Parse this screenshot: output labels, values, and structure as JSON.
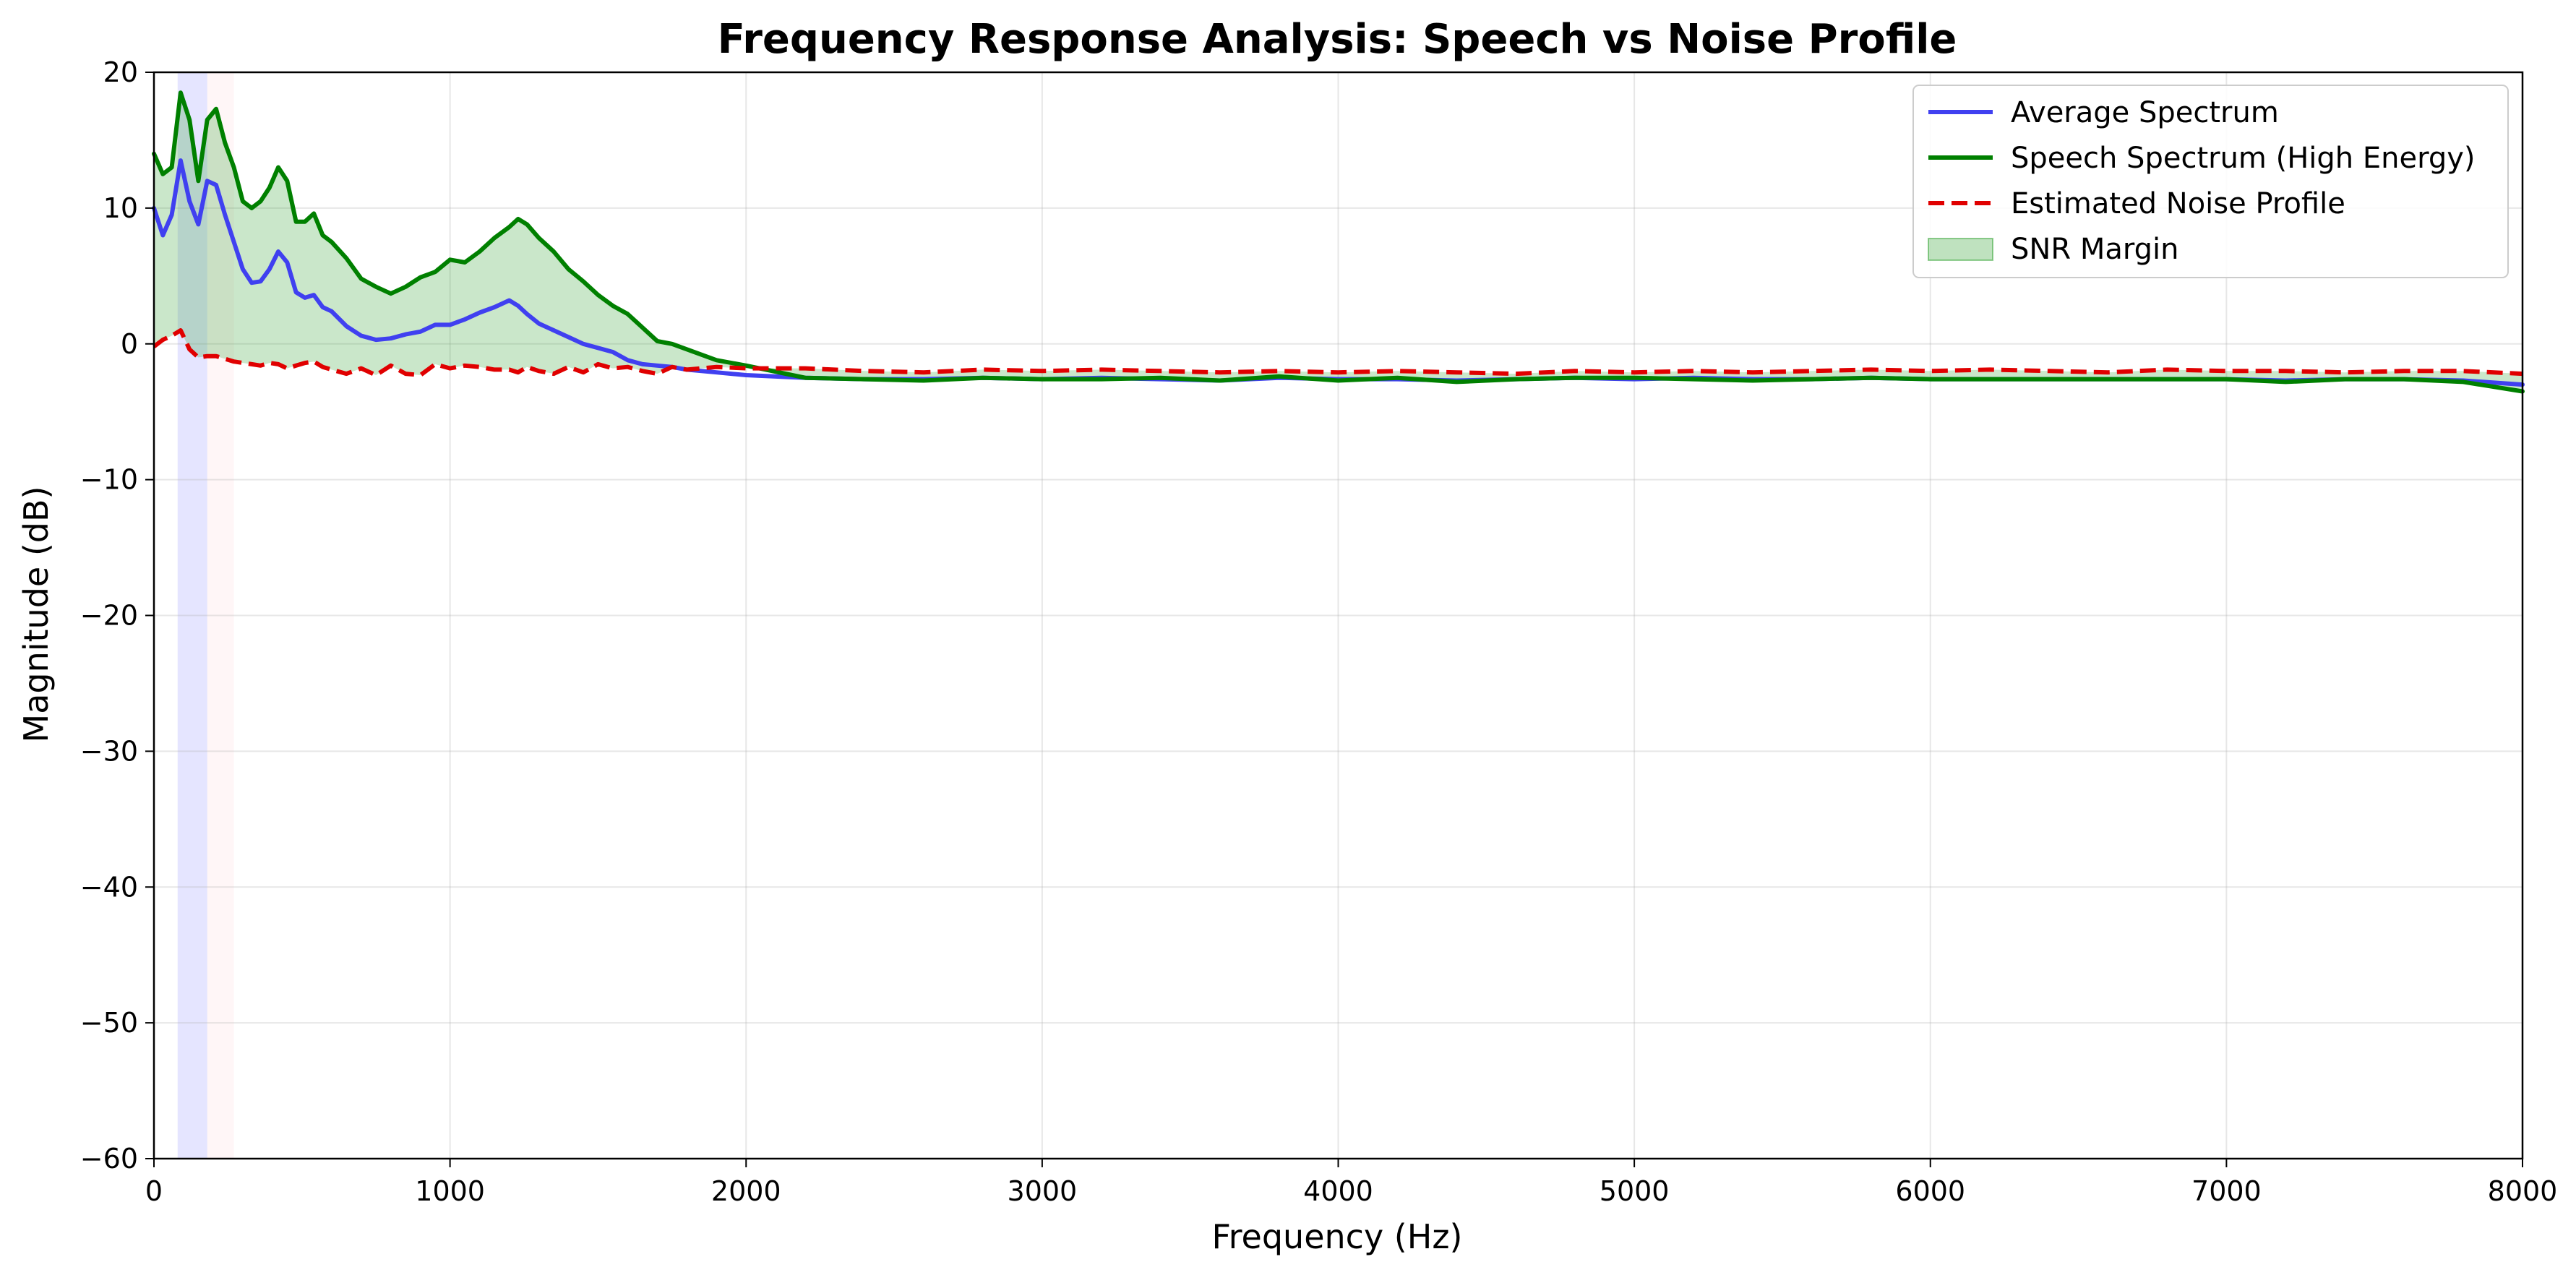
{
  "chart_data": {
    "type": "line",
    "title": "Frequency Response Analysis: Speech vs Noise Profile",
    "xlabel": "Frequency (Hz)",
    "ylabel": "Magnitude (dB)",
    "xlim": [
      0,
      8000
    ],
    "ylim": [
      -60,
      20
    ],
    "xticks": [
      0,
      1000,
      2000,
      3000,
      4000,
      5000,
      6000,
      7000,
      8000
    ],
    "yticks": [
      20,
      10,
      0,
      -10,
      -20,
      -30,
      -40,
      -50,
      -60
    ],
    "grid": true,
    "legend_position": "top-right",
    "shaded_bands": [
      {
        "x0": 80,
        "x1": 180,
        "color": "#0000ff",
        "opacity": 0.1
      },
      {
        "x0": 180,
        "x1": 270,
        "color": "#ffc0cb",
        "opacity": 0.15
      }
    ],
    "fill_between": {
      "name": "SNR Margin",
      "color": "#2ca02c",
      "opacity": 0.25,
      "upper": "Speech Spectrum (High Energy)",
      "lower": "Estimated Noise Profile"
    },
    "series": [
      {
        "name": "Average Spectrum",
        "color": "#4040f0",
        "style": "solid",
        "x": [
          0,
          30,
          60,
          90,
          120,
          150,
          180,
          210,
          240,
          270,
          300,
          330,
          360,
          390,
          420,
          450,
          480,
          510,
          540,
          570,
          600,
          650,
          700,
          750,
          800,
          850,
          900,
          950,
          1000,
          1050,
          1100,
          1150,
          1200,
          1230,
          1260,
          1300,
          1350,
          1400,
          1450,
          1500,
          1550,
          1600,
          1650,
          1700,
          1750,
          1800,
          1900,
          2000,
          2200,
          2400,
          2600,
          2800,
          3000,
          3200,
          3400,
          3600,
          3800,
          4000,
          4200,
          4400,
          4600,
          4800,
          5000,
          5200,
          5400,
          5600,
          5800,
          6000,
          6200,
          6400,
          6600,
          6800,
          7000,
          7200,
          7400,
          7600,
          7800,
          8000
        ],
        "y": [
          10,
          8,
          9.5,
          13.5,
          10.5,
          8.8,
          12,
          11.7,
          9.5,
          7.5,
          5.5,
          4.5,
          4.6,
          5.5,
          6.8,
          6,
          3.8,
          3.4,
          3.6,
          2.7,
          2.4,
          1.3,
          0.6,
          0.3,
          0.4,
          0.7,
          0.9,
          1.4,
          1.4,
          1.8,
          2.3,
          2.7,
          3.2,
          2.8,
          2.2,
          1.5,
          1,
          0.5,
          0,
          -0.3,
          -0.6,
          -1.2,
          -1.5,
          -1.6,
          -1.7,
          -1.9,
          -2.1,
          -2.3,
          -2.5,
          -2.6,
          -2.6,
          -2.5,
          -2.6,
          -2.5,
          -2.6,
          -2.7,
          -2.5,
          -2.6,
          -2.6,
          -2.7,
          -2.6,
          -2.5,
          -2.6,
          -2.5,
          -2.6,
          -2.6,
          -2.5,
          -2.6,
          -2.6,
          -2.6,
          -2.6,
          -2.6,
          -2.6,
          -2.7,
          -2.6,
          -2.6,
          -2.7,
          -3
        ]
      },
      {
        "name": "Speech Spectrum (High Energy)",
        "color": "#008000",
        "style": "solid",
        "x": [
          0,
          30,
          60,
          90,
          120,
          150,
          180,
          210,
          240,
          270,
          300,
          330,
          360,
          390,
          420,
          450,
          480,
          510,
          540,
          570,
          600,
          650,
          700,
          750,
          800,
          850,
          900,
          950,
          1000,
          1050,
          1100,
          1150,
          1200,
          1230,
          1260,
          1300,
          1350,
          1400,
          1450,
          1500,
          1550,
          1600,
          1650,
          1700,
          1750,
          1800,
          1900,
          2000,
          2200,
          2400,
          2600,
          2800,
          3000,
          3200,
          3400,
          3600,
          3800,
          4000,
          4200,
          4400,
          4600,
          4800,
          5000,
          5200,
          5400,
          5600,
          5800,
          6000,
          6200,
          6400,
          6600,
          6800,
          7000,
          7200,
          7400,
          7600,
          7800,
          8000
        ],
        "y": [
          14,
          12.5,
          13,
          18.5,
          16.5,
          12,
          16.5,
          17.3,
          14.8,
          13,
          10.5,
          10,
          10.5,
          11.5,
          13,
          12,
          9,
          9,
          9.6,
          8,
          7.5,
          6.3,
          4.8,
          4.2,
          3.7,
          4.2,
          4.9,
          5.3,
          6.2,
          6,
          6.8,
          7.8,
          8.6,
          9.2,
          8.8,
          7.8,
          6.8,
          5.5,
          4.6,
          3.6,
          2.8,
          2.2,
          1.2,
          0.2,
          0,
          -0.4,
          -1.2,
          -1.6,
          -2.5,
          -2.6,
          -2.7,
          -2.5,
          -2.6,
          -2.6,
          -2.5,
          -2.7,
          -2.4,
          -2.7,
          -2.5,
          -2.8,
          -2.6,
          -2.5,
          -2.5,
          -2.6,
          -2.7,
          -2.6,
          -2.5,
          -2.6,
          -2.6,
          -2.6,
          -2.6,
          -2.6,
          -2.6,
          -2.8,
          -2.6,
          -2.6,
          -2.8,
          -3.5
        ]
      },
      {
        "name": "Estimated Noise Profile",
        "color": "#e00000",
        "style": "dashed",
        "x": [
          0,
          30,
          60,
          90,
          120,
          150,
          180,
          210,
          240,
          270,
          300,
          330,
          360,
          390,
          420,
          450,
          480,
          510,
          540,
          570,
          600,
          650,
          700,
          750,
          800,
          850,
          900,
          950,
          1000,
          1050,
          1100,
          1150,
          1200,
          1230,
          1260,
          1300,
          1350,
          1400,
          1450,
          1500,
          1550,
          1600,
          1650,
          1700,
          1750,
          1800,
          1900,
          2000,
          2200,
          2400,
          2600,
          2800,
          3000,
          3200,
          3400,
          3600,
          3800,
          4000,
          4200,
          4400,
          4600,
          4800,
          5000,
          5200,
          5400,
          5600,
          5800,
          6000,
          6200,
          6400,
          6600,
          6800,
          7000,
          7200,
          7400,
          7600,
          7800,
          8000
        ],
        "y": [
          -0.2,
          0.3,
          0.6,
          1,
          -0.4,
          -1,
          -0.9,
          -0.9,
          -1.1,
          -1.3,
          -1.4,
          -1.5,
          -1.6,
          -1.4,
          -1.5,
          -1.8,
          -1.6,
          -1.4,
          -1.3,
          -1.7,
          -1.9,
          -2.2,
          -1.8,
          -2.3,
          -1.6,
          -2.2,
          -2.3,
          -1.5,
          -1.8,
          -1.6,
          -1.7,
          -1.9,
          -1.9,
          -2.1,
          -1.7,
          -2,
          -2.2,
          -1.7,
          -2.1,
          -1.5,
          -1.8,
          -1.7,
          -2,
          -2.2,
          -1.7,
          -1.9,
          -1.7,
          -1.8,
          -1.8,
          -2,
          -2.1,
          -1.9,
          -2,
          -1.9,
          -2,
          -2.1,
          -2,
          -2.1,
          -2,
          -2.1,
          -2.2,
          -2,
          -2.1,
          -2,
          -2.1,
          -2,
          -1.9,
          -2,
          -1.9,
          -2,
          -2.1,
          -1.9,
          -2,
          -2,
          -2.1,
          -2,
          -2,
          -2.2
        ]
      }
    ],
    "legend": [
      {
        "label": "Average Spectrum",
        "kind": "line",
        "color": "#4040f0",
        "style": "solid"
      },
      {
        "label": "Speech Spectrum (High Energy)",
        "kind": "line",
        "color": "#008000",
        "style": "solid"
      },
      {
        "label": "Estimated Noise Profile",
        "kind": "line",
        "color": "#e00000",
        "style": "dashed"
      },
      {
        "label": "SNR Margin",
        "kind": "patch",
        "color": "#2ca02c",
        "style": "solid"
      }
    ]
  }
}
